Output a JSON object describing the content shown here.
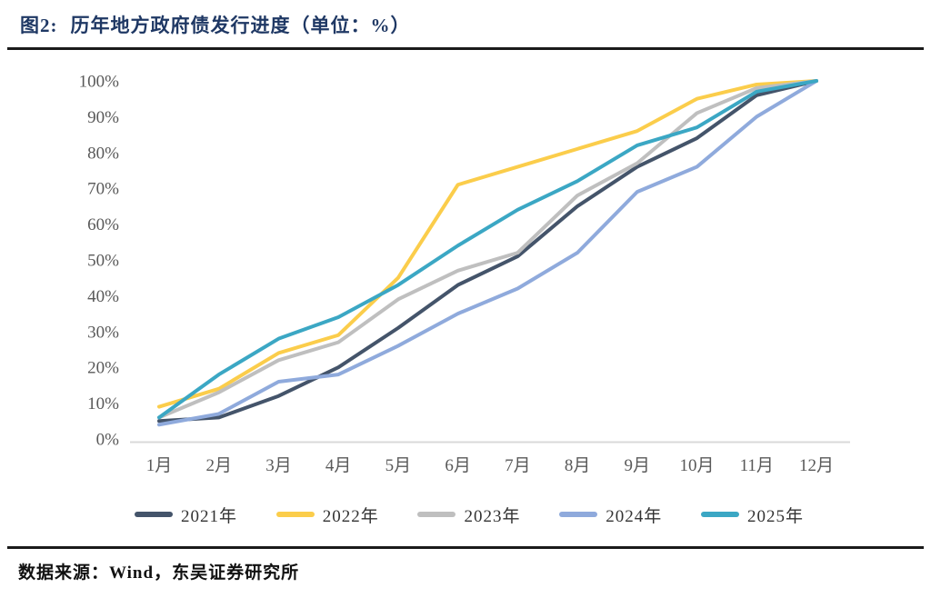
{
  "header": {
    "figure_label": "图2:",
    "figure_title": "历年地方政府债发行进度（单位：%）"
  },
  "footer": {
    "source": "数据来源：Wind，东吴证券研究所"
  },
  "colors": {
    "title": "#1F3864",
    "rule": "#1a1a1a",
    "axis_text": "#595959",
    "axis_line": "#D9D9D9",
    "legend_text": "#333333"
  },
  "chart_data": {
    "type": "line",
    "title": "历年地方政府债发行进度（单位：%）",
    "xlabel": "",
    "ylabel": "",
    "ylim": [
      0,
      100
    ],
    "grid": false,
    "legend_position": "bottom",
    "categories": [
      "1月",
      "2月",
      "3月",
      "4月",
      "5月",
      "6月",
      "7月",
      "8月",
      "9月",
      "10月",
      "11月",
      "12月"
    ],
    "y_ticks": [
      "0%",
      "10%",
      "20%",
      "30%",
      "40%",
      "50%",
      "60%",
      "70%",
      "80%",
      "90%",
      "100%"
    ],
    "series": [
      {
        "name": "2021年",
        "color": "#44546A",
        "values": [
          5,
          6,
          12,
          20,
          31,
          43,
          51,
          65,
          76,
          84,
          96,
          100
        ]
      },
      {
        "name": "2022年",
        "color": "#FBCD4B",
        "values": [
          9,
          14,
          24,
          29,
          45,
          71,
          76,
          81,
          86,
          95,
          99,
          100
        ]
      },
      {
        "name": "2023年",
        "color": "#BFBFBF",
        "values": [
          6,
          13,
          22,
          27,
          39,
          47,
          52,
          68,
          77,
          91,
          98,
          100
        ]
      },
      {
        "name": "2024年",
        "color": "#8FAADC",
        "values": [
          4,
          7,
          16,
          18,
          26,
          35,
          42,
          52,
          69,
          76,
          90,
          100
        ]
      },
      {
        "name": "2025年",
        "color": "#3BA7C4",
        "values": [
          6,
          18,
          28,
          34,
          43,
          54,
          64,
          72,
          82,
          87,
          97,
          100
        ]
      }
    ]
  }
}
